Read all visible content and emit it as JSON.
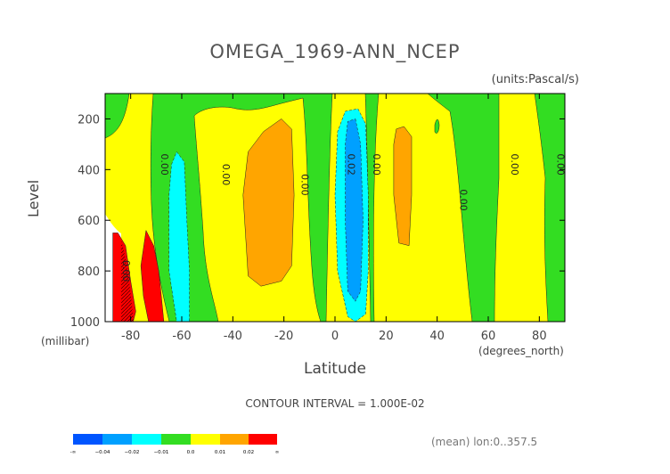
{
  "chart_data": {
    "type": "contour",
    "title": "OMEGA_1969-ANN_NCEP",
    "units_label": "(units:Pascal/s)",
    "xlabel": "Latitude",
    "x_units_label": "(degrees_north)",
    "ylabel": "Level",
    "y_units_label": "(millibar)",
    "xlim": [
      -90,
      90
    ],
    "ylim": [
      1000,
      100
    ],
    "x_ticks": [
      -80,
      -60,
      -40,
      -20,
      0,
      20,
      40,
      60,
      80
    ],
    "x_tick_labels": [
      "-80",
      "-60",
      "-40",
      "-20",
      "0",
      "20",
      "40",
      "60",
      "80"
    ],
    "y_ticks": [
      200,
      400,
      600,
      800,
      1000
    ],
    "y_tick_labels": [
      "200",
      "400",
      "600",
      "800",
      "1000"
    ],
    "contour_interval_text": "CONTOUR INTERVAL = 1.000E-02",
    "footer_text": "(mean) lon:0..357.5",
    "contour_labels": [
      {
        "text": "0.00",
        "lat": -68,
        "level": 380
      },
      {
        "text": "0.00",
        "lat": -44,
        "level": 420
      },
      {
        "text": "0.00",
        "lat": -13,
        "level": 460
      },
      {
        "text": "0.02",
        "lat": 5,
        "level": 380
      },
      {
        "text": "0.00",
        "lat": 15,
        "level": 380
      },
      {
        "text": "0.00",
        "lat": 49,
        "level": 520
      },
      {
        "text": "0.00",
        "lat": 69,
        "level": 380
      },
      {
        "text": "0.00",
        "lat": 87,
        "level": 380
      },
      {
        "text": "0.00",
        "lat": -83,
        "level": 800
      }
    ],
    "regions": [
      {
        "name": "red-south-high",
        "level_bin": "0.02..inf",
        "color": "#ff0000",
        "points": [
          [
            -87,
            650
          ],
          [
            -85,
            650
          ],
          [
            -82,
            700
          ],
          [
            -80,
            840
          ],
          [
            -78,
            960
          ],
          [
            -79,
            1000
          ],
          [
            -87,
            1000
          ]
        ]
      },
      {
        "name": "red-south-high-2",
        "level_bin": "0.02..inf",
        "color": "#ff0000",
        "points": [
          [
            -74,
            640
          ],
          [
            -71,
            700
          ],
          [
            -69,
            800
          ],
          [
            -68,
            900
          ],
          [
            -67,
            1000
          ],
          [
            -73,
            1000
          ],
          [
            -75,
            900
          ],
          [
            -76,
            780
          ]
        ]
      },
      {
        "name": "cyan-south",
        "level_bin": "-0.02..-0.01",
        "color": "#00ffff",
        "points": [
          [
            -62,
            330
          ],
          [
            -59,
            370
          ],
          [
            -58,
            600
          ],
          [
            -57,
            800
          ],
          [
            -57,
            1000
          ],
          [
            -62,
            1000
          ],
          [
            -65,
            800
          ],
          [
            -65,
            500
          ],
          [
            -64,
            380
          ]
        ]
      },
      {
        "name": "orange-south-midlat",
        "level_bin": "0.01..0.02",
        "color": "#ffa500",
        "points": [
          [
            -21,
            200
          ],
          [
            -17,
            240
          ],
          [
            -16,
            500
          ],
          [
            -17,
            780
          ],
          [
            -21,
            840
          ],
          [
            -29,
            860
          ],
          [
            -34,
            820
          ],
          [
            -36,
            500
          ],
          [
            -34,
            330
          ],
          [
            -28,
            250
          ]
        ]
      },
      {
        "name": "cyan-equator",
        "level_bin": "-0.02..-0.01",
        "color": "#00ffff",
        "points": [
          [
            9,
            160
          ],
          [
            12,
            220
          ],
          [
            13,
            500
          ],
          [
            13,
            800
          ],
          [
            12,
            970
          ],
          [
            8,
            1000
          ],
          [
            5,
            980
          ],
          [
            1,
            800
          ],
          [
            0,
            500
          ],
          [
            1,
            250
          ],
          [
            4,
            170
          ]
        ]
      },
      {
        "name": "blue-equator",
        "level_bin": "-0.03..-0.02",
        "color": "#00a0ff",
        "points": [
          [
            8,
            200
          ],
          [
            10,
            300
          ],
          [
            11,
            600
          ],
          [
            10,
            880
          ],
          [
            8,
            920
          ],
          [
            5,
            880
          ],
          [
            4,
            600
          ],
          [
            4,
            300
          ],
          [
            5,
            210
          ]
        ]
      },
      {
        "name": "orange-north",
        "level_bin": "0.01..0.02",
        "color": "#ffa500",
        "points": [
          [
            27,
            230
          ],
          [
            30,
            270
          ],
          [
            30,
            500
          ],
          [
            29,
            700
          ],
          [
            25,
            690
          ],
          [
            23,
            500
          ],
          [
            23,
            300
          ],
          [
            24,
            240
          ]
        ]
      }
    ]
  }
}
